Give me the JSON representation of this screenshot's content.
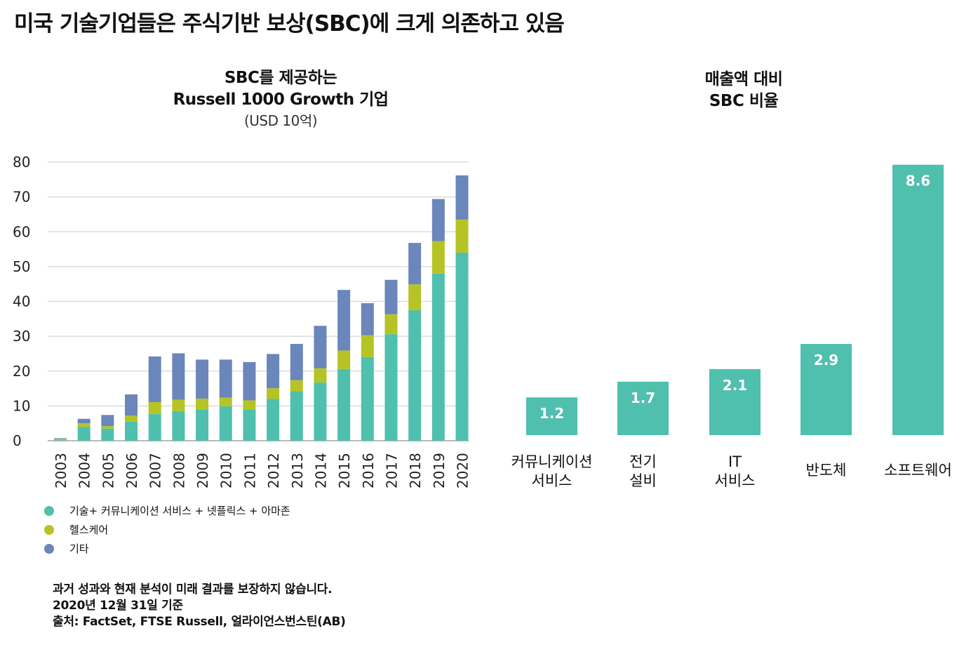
{
  "title": "미국 기술기업들은 주식기반 보상(SBC)에 크게 의존하고 있음",
  "chart_data": [
    {
      "type": "bar",
      "stacked": true,
      "title": "SBC를 제공하는\nRussell 1000 Growth 기업",
      "title_lines": [
        "SBC를 제공하는",
        "Russell 1000 Growth 기업"
      ],
      "unit": "(USD 10억)",
      "categories": [
        "2003",
        "2004",
        "2005",
        "2006",
        "2007",
        "2008",
        "2009",
        "2010",
        "2011",
        "2012",
        "2013",
        "2014",
        "2015",
        "2016",
        "2017",
        "2018",
        "2019",
        "2020"
      ],
      "ylim": [
        0,
        80
      ],
      "yticks": [
        "0",
        "10",
        "20",
        "30",
        "40",
        "50",
        "60",
        "70",
        "80"
      ],
      "grid": true,
      "legend_position": "bottom-left",
      "series": [
        {
          "name": "기술+ 커뮤니케이션 서비스 + 넷플릭스 + 아마존",
          "color": "#4fbfae",
          "values": [
            0.8,
            4.0,
            3.5,
            5.5,
            7.7,
            8.5,
            9.0,
            9.9,
            9.0,
            12.0,
            14.2,
            16.7,
            20.6,
            24.0,
            30.6,
            37.5,
            48.0,
            54.0
          ]
        },
        {
          "name": "헬스케어",
          "color": "#b5c424",
          "values": [
            0,
            1.0,
            0.7,
            1.7,
            3.4,
            3.3,
            3.1,
            2.5,
            2.6,
            3.1,
            3.2,
            4.1,
            5.3,
            6.3,
            5.7,
            7.4,
            9.3,
            9.5
          ]
        },
        {
          "name": "기타",
          "color": "#6a86bb",
          "values": [
            0,
            1.3,
            3.2,
            6.1,
            13.1,
            13.3,
            11.2,
            10.9,
            11.0,
            9.8,
            10.4,
            12.2,
            17.4,
            9.2,
            9.9,
            11.9,
            12.1,
            12.7
          ]
        }
      ]
    },
    {
      "type": "bar",
      "title_lines": [
        "매출액 대비",
        "SBC 비율"
      ],
      "categories": [
        [
          "커뮤니케이션",
          "서비스"
        ],
        [
          "전기",
          "설비"
        ],
        [
          "IT",
          "서비스"
        ],
        [
          "반도체"
        ],
        [
          "소프트웨어"
        ]
      ],
      "values": [
        1.2,
        1.7,
        2.1,
        2.9,
        8.6
      ],
      "data_labels": [
        "1.2",
        "1.7",
        "2.1",
        "2.9",
        "8.6"
      ],
      "color": "#4fbfae",
      "grid": false
    }
  ],
  "notes": [
    "과거 성과와 현재 분석이 미래 결과를 보장하지 않습니다.",
    "2020년 12월 31일 기준",
    "출처: FactSet, FTSE Russell, 얼라이언스번스틴(AB)"
  ]
}
